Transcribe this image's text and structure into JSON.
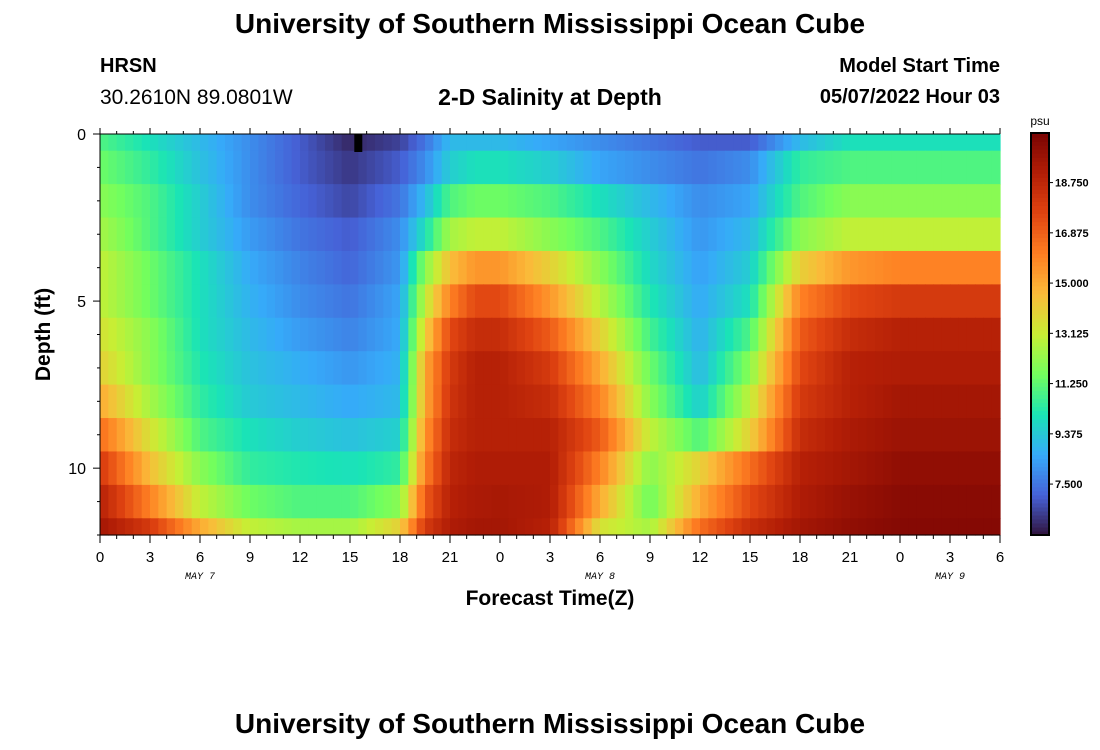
{
  "header": {
    "title": "University of Southern Mississippi Ocean Cube",
    "station": "HRSN",
    "coords": "30.2610N  89.0801W",
    "subtitle": "2-D Salinity at Depth",
    "model_start_label": "Model Start Time",
    "model_start_value": "05/07/2022 Hour 03"
  },
  "footer": {
    "title": "University of Southern Mississippi Ocean Cube"
  },
  "chart_data": {
    "type": "heatmap",
    "title": "2-D Salinity at Depth",
    "xlabel": "Forecast Time(Z)",
    "ylabel": "Depth (ft)",
    "x_ticks": [
      "0",
      "3",
      "6",
      "9",
      "12",
      "15",
      "18",
      "21",
      "0",
      "3",
      "6",
      "9",
      "12",
      "15",
      "18",
      "21",
      "0",
      "3",
      "6"
    ],
    "day_labels": [
      {
        "label": "MAY 7",
        "hour": 6
      },
      {
        "label": "MAY 8",
        "hour": 30
      },
      {
        "label": "MAY 9",
        "hour": 51
      }
    ],
    "x_range_hours": [
      0,
      54
    ],
    "y_range_ft": [
      0,
      12
    ],
    "y_ticks": [
      0,
      5,
      10
    ],
    "depth_levels_ft": [
      0,
      1,
      2,
      3,
      4,
      5,
      6,
      7,
      8,
      9,
      10,
      11,
      12
    ],
    "colorbar": {
      "unit": "psu",
      "range": [
        5.6,
        20.6
      ],
      "ticks": [
        "7.500",
        "9.375",
        "11.250",
        "13.125",
        "15.000",
        "16.875",
        "18.750"
      ],
      "tick_values": [
        7.5,
        9.375,
        11.25,
        13.125,
        15.0,
        16.875,
        18.75
      ],
      "colors": [
        "#30123b",
        "#4662d7",
        "#36aaf9",
        "#1ae4b6",
        "#72fe5e",
        "#c7ef34",
        "#fabb39",
        "#fe7e22",
        "#e04411",
        "#b31e06",
        "#7a0403"
      ]
    },
    "salinity_ft_knots": {
      "hours": [
        0,
        3,
        6,
        9,
        12,
        15,
        18,
        19.5,
        21,
        22.5,
        24,
        27,
        30,
        33,
        36,
        39,
        42,
        45,
        48,
        51,
        54
      ],
      "rows": [
        [
          11,
          10,
          9,
          8,
          7,
          6,
          6.5,
          7.5,
          9,
          9,
          9,
          8.5,
          8,
          7.5,
          7,
          7,
          9,
          10,
          10,
          10,
          10
        ],
        [
          11.5,
          10.5,
          9.2,
          8,
          7,
          6.3,
          7,
          8,
          9.5,
          10,
          10,
          9.5,
          8.5,
          8,
          7.5,
          8,
          10.5,
          11,
          11,
          11,
          11
        ],
        [
          12,
          11,
          9.5,
          8,
          7.2,
          6.6,
          7.5,
          9,
          11,
          11.5,
          11.5,
          11,
          10,
          9,
          8,
          8.5,
          11,
          12,
          12,
          12,
          12
        ],
        [
          12.5,
          11,
          9.5,
          8.3,
          7.5,
          7,
          8,
          10,
          12.5,
          13,
          13,
          12,
          11,
          9.5,
          8.2,
          9,
          12,
          13,
          13,
          13,
          13
        ],
        [
          13,
          11.5,
          10,
          8.6,
          7.8,
          7.2,
          8.2,
          12,
          14.5,
          15.5,
          15.5,
          14,
          12,
          9.8,
          8.4,
          9.5,
          14,
          15.5,
          16,
          16,
          16
        ],
        [
          13,
          11.5,
          10,
          8.8,
          8,
          7.5,
          8.5,
          13,
          16,
          17.5,
          17.5,
          15.5,
          12.8,
          10.2,
          8.6,
          10,
          16,
          17.5,
          18,
          18,
          18
        ],
        [
          13.5,
          12,
          10,
          9,
          8.3,
          7.8,
          8.6,
          14,
          17.5,
          18.5,
          18.5,
          17,
          14,
          10.8,
          8.8,
          11,
          17,
          18.5,
          19,
          19,
          19
        ],
        [
          14,
          12,
          10.2,
          9.2,
          8.7,
          8.2,
          8.8,
          15,
          18,
          19,
          19,
          18,
          15,
          11.5,
          9,
          12,
          17.5,
          19,
          19.2,
          19.2,
          19.2
        ],
        [
          15,
          12.5,
          10.5,
          9.4,
          9,
          8.6,
          9,
          15,
          18.2,
          19,
          19,
          18.5,
          16,
          12,
          9.5,
          13,
          18,
          19,
          19.5,
          19.5,
          19.5
        ],
        [
          16.5,
          13.5,
          11,
          10,
          9.5,
          9.2,
          9.6,
          15.5,
          18.5,
          19,
          19,
          19,
          17,
          13,
          11,
          14,
          18.5,
          19.3,
          19.7,
          19.7,
          19.7
        ],
        [
          18,
          14.5,
          12,
          10.5,
          10.2,
          10,
          10.5,
          16,
          18.8,
          19.2,
          19.2,
          19.2,
          16,
          12,
          14,
          16.5,
          19,
          19.5,
          20,
          20,
          20
        ],
        [
          19,
          16,
          13,
          11.5,
          11,
          11,
          12,
          17,
          19,
          19.3,
          19.4,
          19.2,
          15,
          11.5,
          15,
          17.5,
          19.2,
          19.8,
          20.2,
          20.2,
          20.2
        ],
        [
          19.5,
          18,
          15,
          13,
          12.5,
          12.5,
          14,
          18,
          19.2,
          19.5,
          19.5,
          19,
          13.5,
          12.5,
          16.5,
          18.5,
          19.5,
          20,
          20.3,
          20.3,
          20.3
        ]
      ]
    },
    "marker": {
      "hour": 15.5,
      "depth_ft": 0
    }
  }
}
